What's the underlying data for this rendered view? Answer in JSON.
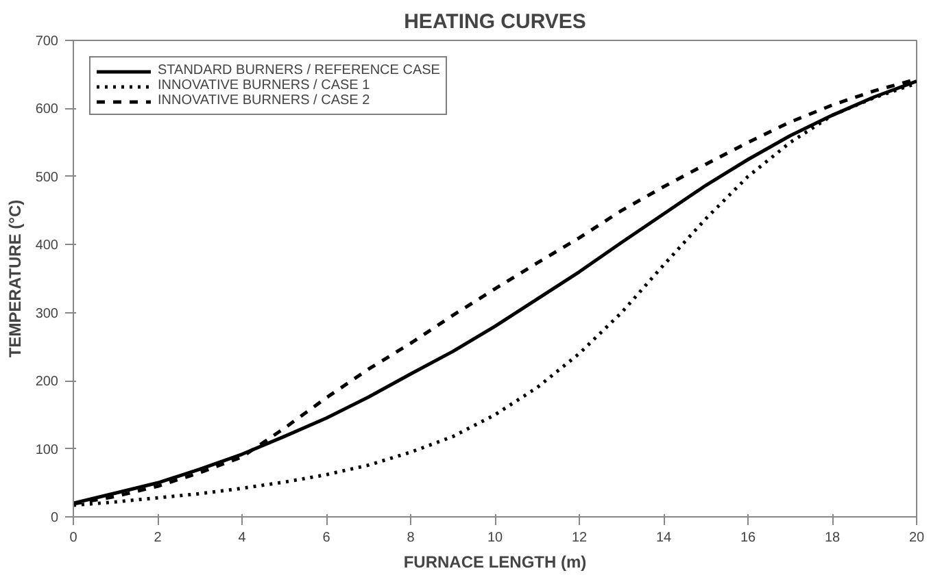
{
  "chart_data": {
    "type": "line",
    "title": "HEATING CURVES",
    "xlabel": "FURNACE LENGTH (m)",
    "ylabel": "TEMPERATURE (°C)",
    "x": [
      0,
      1,
      2,
      3,
      4,
      5,
      6,
      7,
      8,
      9,
      10,
      11,
      12,
      13,
      14,
      15,
      16,
      17,
      18,
      19,
      20
    ],
    "series": [
      {
        "name": "STANDARD BURNERS / REFERENCE CASE",
        "color": "#000000",
        "line_style": "solid",
        "values": [
          20,
          35,
          50,
          70,
          92,
          118,
          145,
          176,
          210,
          243,
          280,
          320,
          360,
          403,
          445,
          487,
          525,
          560,
          590,
          617,
          640
        ]
      },
      {
        "name": "INNOVATIVE BURNERS / CASE 1",
        "color": "#000000",
        "line_style": "dotted",
        "values": [
          17,
          22,
          28,
          34,
          42,
          51,
          62,
          76,
          95,
          118,
          150,
          190,
          240,
          300,
          370,
          438,
          500,
          550,
          590,
          616,
          637
        ]
      },
      {
        "name": "INNOVATIVE BURNERS / CASE 2",
        "color": "#000000",
        "line_style": "dashed",
        "values": [
          19,
          30,
          45,
          65,
          88,
          130,
          175,
          217,
          255,
          296,
          335,
          373,
          410,
          450,
          485,
          518,
          550,
          580,
          605,
          626,
          643
        ]
      }
    ],
    "xlim": [
      0,
      20
    ],
    "xticks": [
      0,
      2,
      4,
      6,
      8,
      10,
      12,
      14,
      16,
      18,
      20
    ],
    "ylim": [
      0,
      700
    ],
    "yticks": [
      0,
      100,
      200,
      300,
      400,
      500,
      600,
      700
    ],
    "grid": false,
    "legend": "top left",
    "marker": "none"
  }
}
